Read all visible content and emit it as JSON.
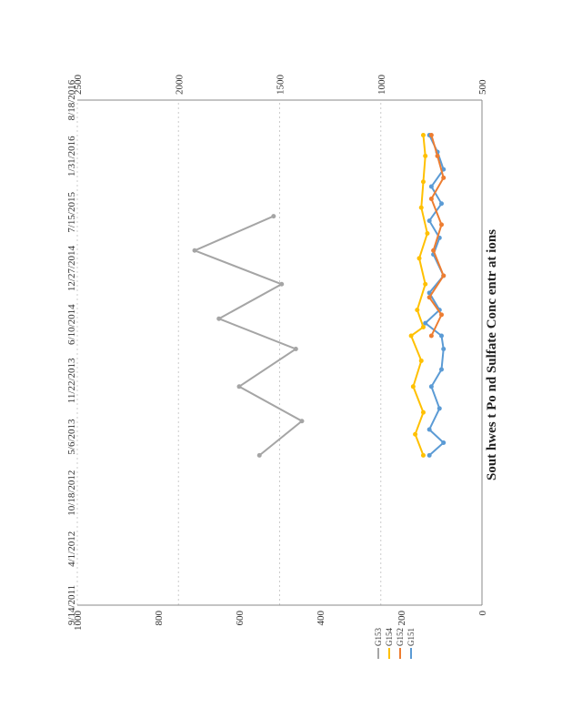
{
  "chart_data": {
    "type": "line",
    "title": "Sout hwes t Po nd Sulfate Conc entr at ions",
    "x_dates": [
      "9/14/2011",
      "4/1/2012",
      "10/18/2012",
      "5/6/2013",
      "11/22/2013",
      "6/10/2014",
      "12/27/2014",
      "7/15/2015",
      "1/31/2016",
      "8/18/2016"
    ],
    "left_axis": {
      "ylim": [
        0,
        1000
      ],
      "ticks": [
        "0",
        "200",
        "400",
        "600",
        "800",
        "1000"
      ]
    },
    "right_axis": {
      "ylim": [
        500,
        2500
      ],
      "ticks": [
        "500",
        "1000",
        "1500",
        "2000",
        "2500"
      ]
    },
    "legend": [
      {
        "name": "G151",
        "color": "#5b9bd5"
      },
      {
        "name": "G152",
        "color": "#ed7d31"
      },
      {
        "name": "G154",
        "color": "#ffc000"
      },
      {
        "name": "G153",
        "color": "#a5a5a5"
      }
    ],
    "series": [
      {
        "name": "G151",
        "axis": "left",
        "color": "#5b9bd5",
        "x": [
          "3/1/2013",
          "4/15/2013",
          "6/1/2013",
          "8/15/2013",
          "11/1/2013",
          "1/1/2014",
          "3/15/2014",
          "5/1/2014",
          "6/15/2014",
          "8/1/2014",
          "10/1/2014",
          "12/1/2014",
          "2/15/2015",
          "4/15/2015",
          "6/15/2015",
          "8/15/2015",
          "10/15/2015",
          "12/15/2015",
          "2/15/2016",
          "4/15/2016"
        ],
        "y": [
          130,
          95,
          130,
          105,
          125,
          100,
          95,
          100,
          140,
          105,
          130,
          95,
          120,
          105,
          130,
          100,
          125,
          95,
          110,
          130
        ]
      },
      {
        "name": "G152",
        "axis": "left",
        "color": "#ed7d31",
        "x": [
          "5/1/2014",
          "7/15/2014",
          "9/15/2014",
          "12/1/2014",
          "3/1/2015",
          "6/1/2015",
          "9/1/2015",
          "11/15/2015",
          "2/1/2016",
          "4/15/2016"
        ],
        "y": [
          125,
          100,
          130,
          95,
          120,
          100,
          125,
          95,
          110,
          125
        ]
      },
      {
        "name": "G154",
        "axis": "left",
        "color": "#ffc000",
        "x": [
          "3/1/2013",
          "5/15/2013",
          "8/1/2013",
          "11/1/2013",
          "2/1/2014",
          "5/1/2014",
          "6/1/2014",
          "8/1/2014",
          "11/1/2014",
          "2/1/2015",
          "5/1/2015",
          "8/1/2015",
          "11/1/2015",
          "2/1/2016",
          "4/15/2016"
        ],
        "y": [
          145,
          165,
          145,
          170,
          150,
          175,
          145,
          160,
          140,
          155,
          135,
          150,
          145,
          140,
          145
        ]
      },
      {
        "name": "G153",
        "axis": "right",
        "color": "#a5a5a5",
        "x": [
          "3/1/2013",
          "7/1/2013",
          "11/1/2013",
          "3/15/2014",
          "7/1/2014",
          "11/1/2014",
          "3/1/2015",
          "7/1/2015"
        ],
        "y": [
          1600,
          1390,
          1700,
          1420,
          1800,
          1490,
          1920,
          1530
        ]
      }
    ]
  }
}
